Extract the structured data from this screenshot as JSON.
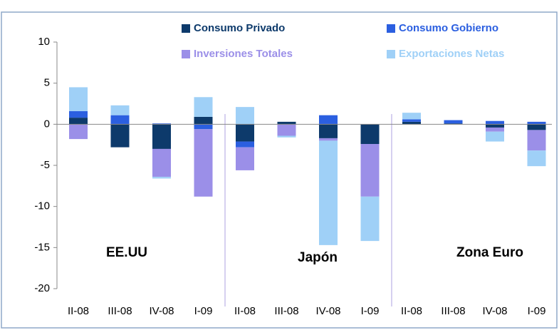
{
  "chart_data": {
    "type": "bar",
    "stacked": true,
    "categories": [
      "II-08",
      "III-08",
      "IV-08",
      "I-09",
      "II-08",
      "III-08",
      "IV-08",
      "I-09",
      "II-08",
      "III-08",
      "IV-08",
      "I-09"
    ],
    "group_labels": [
      "EE.UU",
      "Japón",
      "Zona Euro"
    ],
    "series": [
      {
        "name": "Consumo Privado",
        "color": "#0d3a6b",
        "values": [
          0.8,
          -2.8,
          -3.0,
          0.9,
          -2.1,
          0.3,
          -1.7,
          -2.4,
          0.3,
          0.1,
          -0.4,
          -0.7
        ]
      },
      {
        "name": "Consumo Gobierno",
        "color": "#2b5fe0",
        "values": [
          0.8,
          1.1,
          0.1,
          -0.6,
          -0.7,
          0,
          1.1,
          0,
          0.3,
          0.4,
          0.4,
          0.3
        ]
      },
      {
        "name": "Inversiones Totales",
        "color": "#9b8fe8",
        "values": [
          -1.8,
          0,
          -3.4,
          -8.2,
          -2.8,
          -1.4,
          -0.3,
          -6.4,
          0,
          0,
          -0.5,
          -2.5
        ]
      },
      {
        "name": "Exportaciones Netas",
        "color": "#9fd0f7",
        "values": [
          2.9,
          1.2,
          -0.2,
          2.4,
          2.1,
          -0.2,
          -12.7,
          -5.4,
          0.8,
          0,
          -1.2,
          -1.9
        ]
      }
    ],
    "ylim": [
      -20,
      10
    ],
    "yticks": [
      10,
      5,
      0,
      -5,
      -10,
      -15,
      -20
    ],
    "grid": false
  }
}
